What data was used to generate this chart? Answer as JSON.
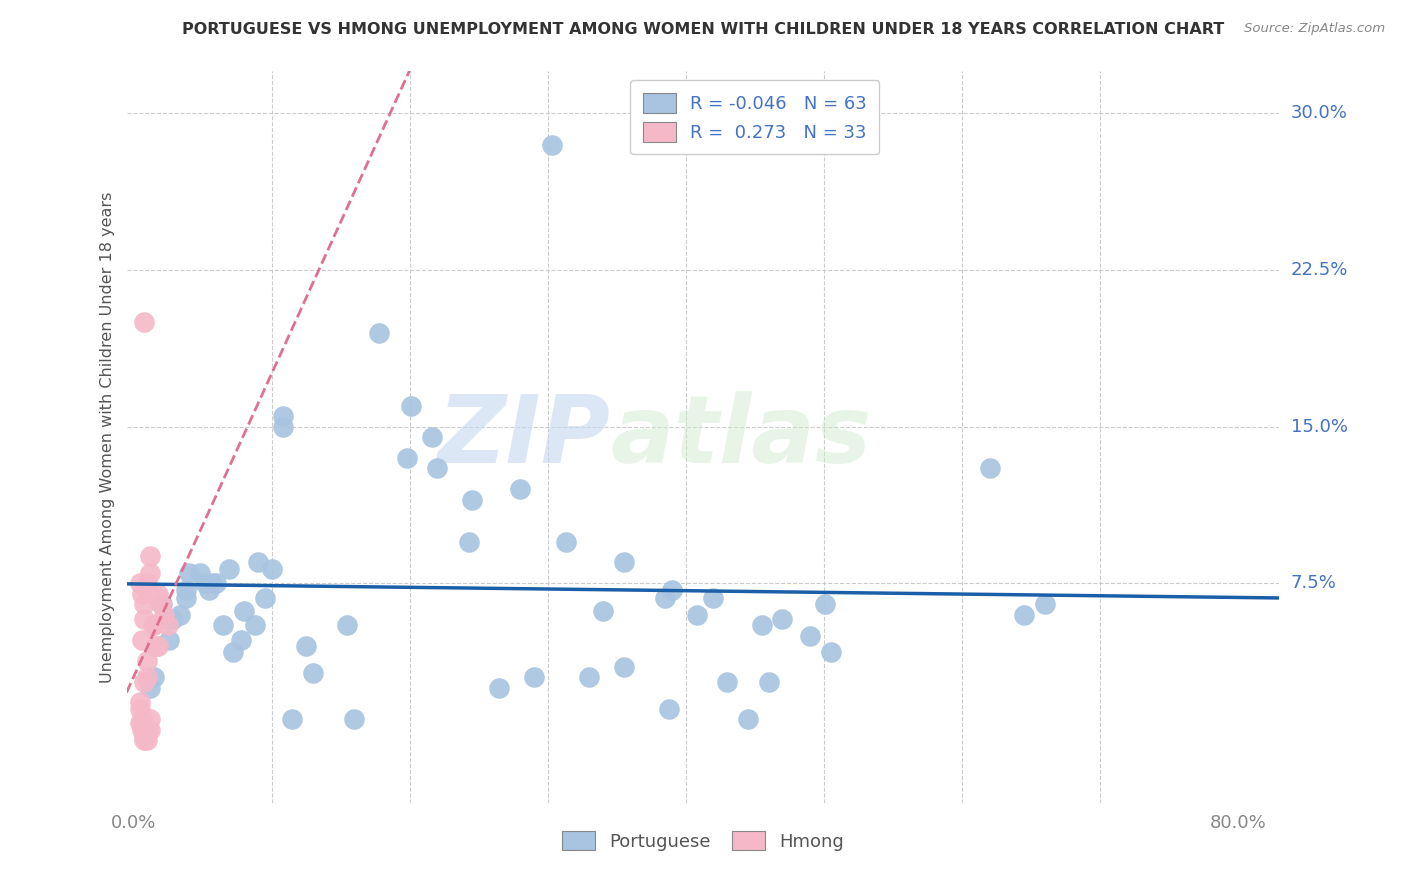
{
  "title": "PORTUGUESE VS HMONG UNEMPLOYMENT AMONG WOMEN WITH CHILDREN UNDER 18 YEARS CORRELATION CHART",
  "source": "Source: ZipAtlas.com",
  "ylabel": "Unemployment Among Women with Children Under 18 years",
  "xlim": [
    -0.005,
    0.83
  ],
  "ylim": [
    -0.03,
    0.32
  ],
  "ytick_positions": [
    0.075,
    0.15,
    0.225,
    0.3
  ],
  "yticklabels": [
    "7.5%",
    "15.0%",
    "22.5%",
    "30.0%"
  ],
  "xtick_positions": [
    0.0,
    0.1,
    0.2,
    0.3,
    0.4,
    0.5,
    0.6,
    0.7,
    0.8
  ],
  "portuguese_r": "-0.046",
  "portuguese_n": "63",
  "hmong_r": "0.273",
  "hmong_n": "33",
  "portuguese_color": "#a8c4e0",
  "hmong_color": "#f4b8c8",
  "trendline_portuguese_color": "#1a5fa8",
  "trendline_hmong_color": "#e07090",
  "watermark_zip": "ZIP",
  "watermark_atlas": "atlas",
  "portuguese_x": [
    0.303,
    0.108,
    0.108,
    0.178,
    0.201,
    0.216,
    0.22,
    0.243,
    0.245,
    0.265,
    0.28,
    0.29,
    0.313,
    0.33,
    0.34,
    0.355,
    0.355,
    0.385,
    0.388,
    0.39,
    0.408,
    0.42,
    0.43,
    0.445,
    0.455,
    0.46,
    0.47,
    0.49,
    0.501,
    0.505,
    0.62,
    0.645,
    0.66,
    0.065,
    0.069,
    0.072,
    0.078,
    0.08,
    0.088,
    0.09,
    0.095,
    0.1,
    0.115,
    0.125,
    0.13,
    0.155,
    0.16,
    0.012,
    0.015,
    0.021,
    0.025,
    0.026,
    0.029,
    0.034,
    0.038,
    0.038,
    0.04,
    0.048,
    0.052,
    0.055,
    0.057,
    0.06,
    0.198
  ],
  "portuguese_y": [
    0.285,
    0.15,
    0.155,
    0.195,
    0.16,
    0.145,
    0.13,
    0.095,
    0.115,
    0.025,
    0.12,
    0.03,
    0.095,
    0.03,
    0.062,
    0.035,
    0.085,
    0.068,
    0.015,
    0.072,
    0.06,
    0.068,
    0.028,
    0.01,
    0.055,
    0.028,
    0.058,
    0.05,
    0.065,
    0.042,
    0.13,
    0.06,
    0.065,
    0.055,
    0.082,
    0.042,
    0.048,
    0.062,
    0.055,
    0.085,
    0.068,
    0.082,
    0.01,
    0.045,
    0.032,
    0.055,
    0.01,
    0.025,
    0.03,
    0.065,
    0.058,
    0.048,
    0.058,
    0.06,
    0.068,
    0.072,
    0.08,
    0.08,
    0.075,
    0.072,
    0.075,
    0.075,
    0.135
  ],
  "hmong_x": [
    0.005,
    0.005,
    0.005,
    0.006,
    0.006,
    0.006,
    0.008,
    0.008,
    0.008,
    0.008,
    0.008,
    0.01,
    0.01,
    0.01,
    0.01,
    0.01,
    0.012,
    0.012,
    0.012,
    0.014,
    0.015,
    0.016,
    0.018,
    0.018,
    0.018,
    0.02,
    0.022,
    0.025,
    0.006,
    0.008,
    0.01,
    0.005,
    0.012
  ],
  "hmong_y": [
    0.015,
    0.075,
    0.008,
    0.01,
    0.005,
    0.07,
    0.2,
    0.065,
    0.0,
    0.002,
    0.058,
    0.075,
    0.072,
    0.0,
    0.038,
    0.005,
    0.005,
    0.08,
    0.088,
    0.055,
    0.055,
    0.045,
    0.045,
    0.07,
    0.068,
    0.065,
    0.06,
    0.055,
    0.048,
    0.028,
    0.03,
    0.018,
    0.01
  ]
}
